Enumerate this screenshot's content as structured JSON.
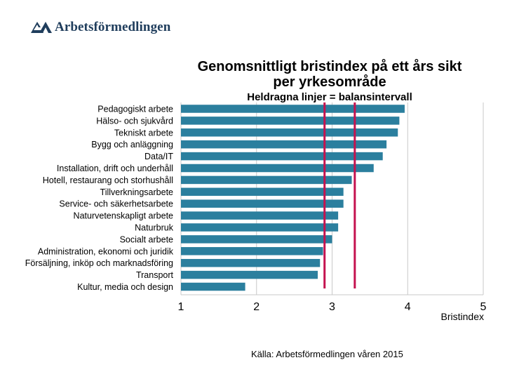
{
  "logo": {
    "text": "Arbetsförmedlingen",
    "icon": "af-logo-icon"
  },
  "chart_data": {
    "type": "bar",
    "orientation": "horizontal",
    "title": "Genomsnittligt bristindex på ett års sikt",
    "subtitle": "per yrkesområde",
    "annotation": "Heldragna linjer = balansintervall",
    "xlabel": "Bristindex",
    "xlim": [
      1,
      5
    ],
    "xticks": [
      1,
      2,
      3,
      4,
      5
    ],
    "categories": [
      "Pedagogiskt arbete",
      "Hälso- och sjukvård",
      "Tekniskt arbete",
      "Bygg och anläggning",
      "Data/IT",
      "Installation, drift och underhåll",
      "Hotell, restaurang och storhushåll",
      "Tillverkningsarbete",
      "Service- och säkerhetsarbete",
      "Naturvetenskapligt arbete",
      "Naturbruk",
      "Socialt arbete",
      "Administration, ekonomi och juridik",
      "Försäljning, inköp och marknadsföring",
      "Transport",
      "Kultur, media och design"
    ],
    "values": [
      3.96,
      3.89,
      3.87,
      3.72,
      3.67,
      3.55,
      3.26,
      3.15,
      3.15,
      3.08,
      3.08,
      3.0,
      2.88,
      2.84,
      2.81,
      1.85
    ],
    "reference_lines": [
      2.9,
      3.3
    ],
    "bar_color": "#2b7f9e",
    "line_color": "#c4124f",
    "grid": true,
    "source": "Källa: Arbetsförmedlingen våren 2015"
  }
}
